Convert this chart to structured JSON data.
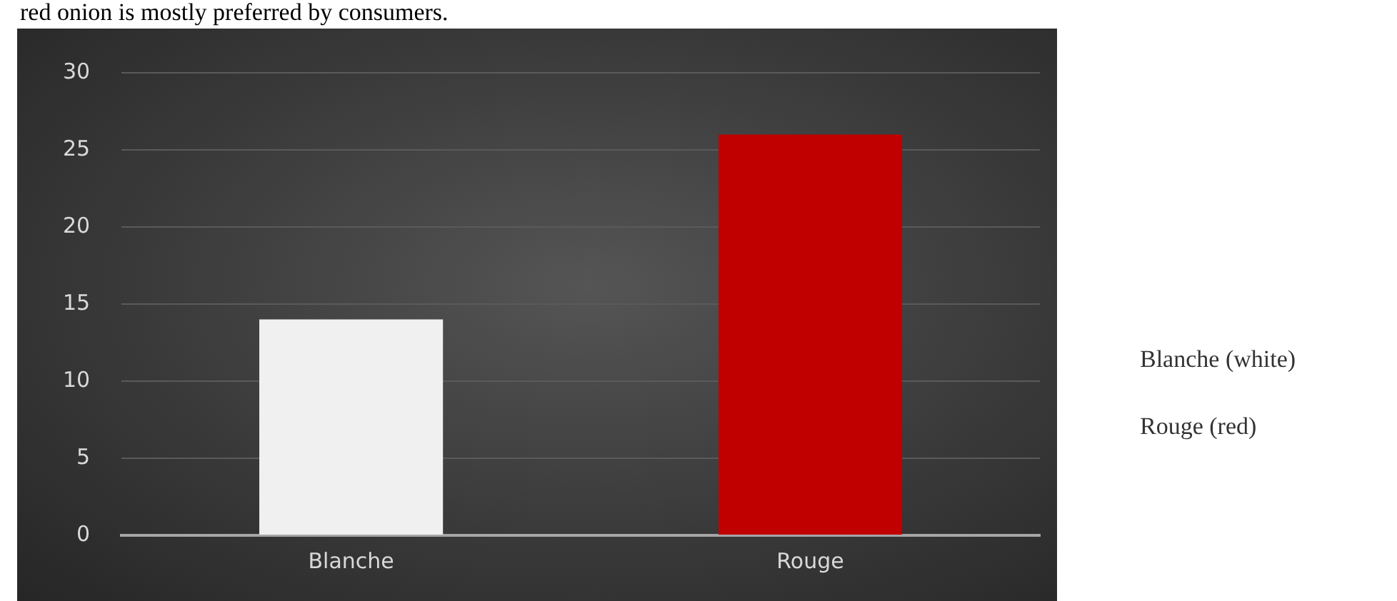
{
  "chart_data": {
    "type": "bar",
    "title": "red onion is mostly preferred by consumers.",
    "categories": [
      "Blanche",
      "Rouge"
    ],
    "values": [
      14,
      26
    ],
    "colors": [
      "#f0f0f0",
      "#c00000"
    ],
    "ylim": [
      0,
      30
    ],
    "yticks": [
      0,
      5,
      10,
      15,
      20,
      25,
      30
    ],
    "grid": "y",
    "annotations": [
      "Blanche (white)",
      "Rouge (red)"
    ]
  }
}
